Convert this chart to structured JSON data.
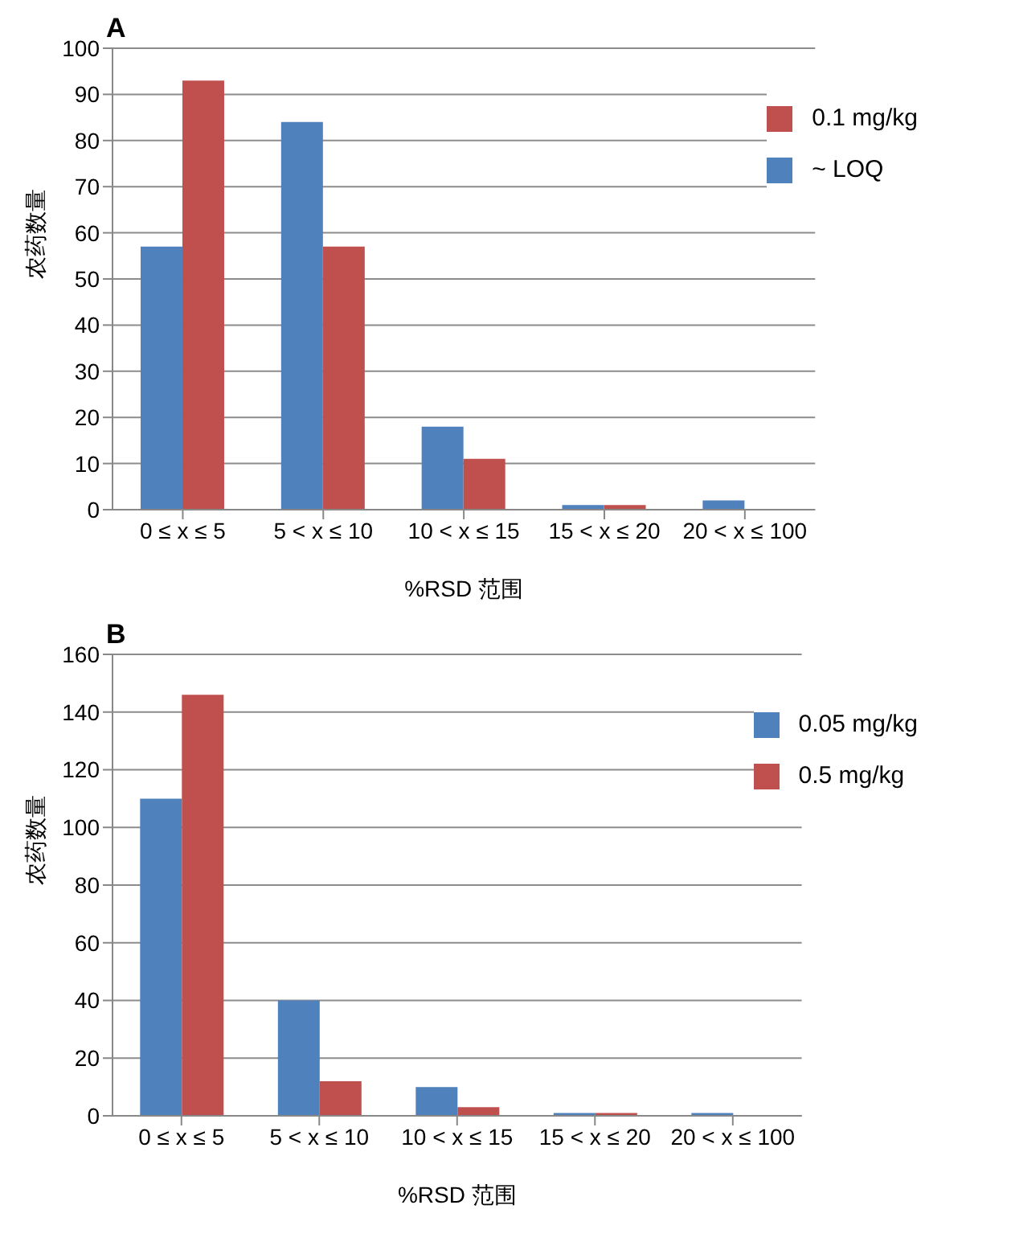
{
  "chart_data": [
    {
      "type": "bar",
      "title": "A",
      "xlabel": "%RSD 范围",
      "ylabel": "农药数量",
      "categories": [
        "0 ≤ x ≤ 5",
        "5 < x ≤ 10",
        "10 < x ≤ 15",
        "15 < x ≤ 20",
        "20 < x ≤ 100"
      ],
      "series": [
        {
          "name": "~ LOQ",
          "color": "#4f81bd",
          "values": [
            57,
            84,
            18,
            1,
            2
          ]
        },
        {
          "name": "0.1 mg/kg",
          "color": "#c0504d",
          "values": [
            93,
            57,
            11,
            1,
            0
          ]
        }
      ],
      "ylim": [
        0,
        100
      ],
      "yticks": [
        0,
        10,
        20,
        30,
        40,
        50,
        60,
        70,
        80,
        90,
        100
      ],
      "grid": "y",
      "legend": "top right"
    },
    {
      "type": "bar",
      "title": "B",
      "xlabel": "%RSD 范围",
      "ylabel": "农药数量",
      "categories": [
        "0 ≤ x ≤ 5",
        "5 < x ≤ 10",
        "10 < x ≤ 15",
        "15 < x ≤ 20",
        "20 < x ≤ 100"
      ],
      "series": [
        {
          "name": "0.05 mg/kg",
          "color": "#4f81bd",
          "values": [
            110,
            40,
            10,
            1,
            1
          ]
        },
        {
          "name": "0.5 mg/kg",
          "color": "#c0504d",
          "values": [
            146,
            12,
            3,
            1,
            0
          ]
        }
      ],
      "ylim": [
        0,
        160
      ],
      "yticks": [
        0,
        20,
        40,
        60,
        80,
        100,
        120,
        140,
        160
      ],
      "grid": "y",
      "legend": "top right"
    }
  ]
}
